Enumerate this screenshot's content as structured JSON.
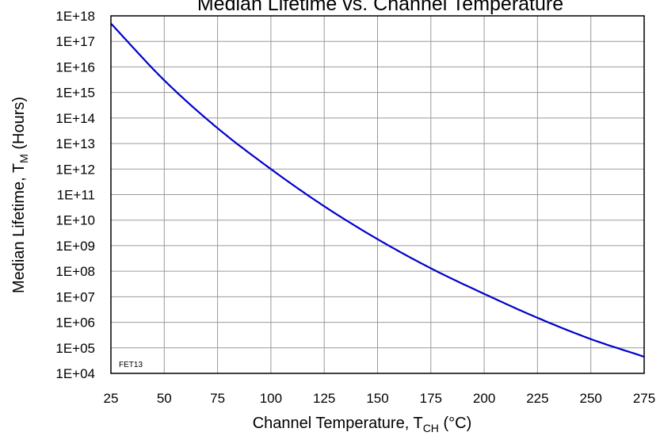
{
  "chart_data": {
    "type": "line",
    "title": "Median Lifetime vs. Channel Temperature",
    "xlabel": {
      "main": "Channel Temperature, T",
      "sub": "CH",
      "tail": " (°C)"
    },
    "ylabel": {
      "main": "Median Lifetime, T",
      "sub": "M",
      "tail": " (Hours)"
    },
    "xlim": [
      25,
      275
    ],
    "x_ticks": [
      25,
      50,
      75,
      100,
      125,
      150,
      175,
      200,
      225,
      250,
      275
    ],
    "x_tick_labels": [
      "25",
      "50",
      "75",
      "100",
      "125",
      "150",
      "175",
      "200",
      "225",
      "250",
      "275"
    ],
    "y_scale": "log",
    "ylim": [
      10000,
      1e+18
    ],
    "y_ticks": [
      10000.0,
      100000.0,
      1000000.0,
      10000000.0,
      100000000.0,
      1000000000.0,
      10000000000.0,
      100000000000.0,
      1000000000000.0,
      10000000000000.0,
      100000000000000.0,
      1000000000000000.0,
      1e+16,
      1e+17,
      1e+18
    ],
    "y_tick_labels": [
      "1E+04",
      "1E+05",
      "1E+06",
      "1E+07",
      "1E+08",
      "1E+09",
      "1E+10",
      "1E+11",
      "1E+12",
      "1E+13",
      "1E+14",
      "1E+15",
      "1E+16",
      "1E+17",
      "1E+18"
    ],
    "grid": true,
    "annotation": "FET13",
    "series": [
      {
        "color": "#0000CC",
        "x": [
          25,
          50,
          75,
          100,
          125,
          150,
          175,
          200,
          225,
          250,
          275
        ],
        "y": [
          5e+17,
          3000000000000000.0,
          40000000000000.0,
          1000000000000.0,
          35000000000.0,
          1800000000.0,
          130000000.0,
          13000000.0,
          1500000.0,
          220000.0,
          45000.0
        ]
      }
    ]
  }
}
